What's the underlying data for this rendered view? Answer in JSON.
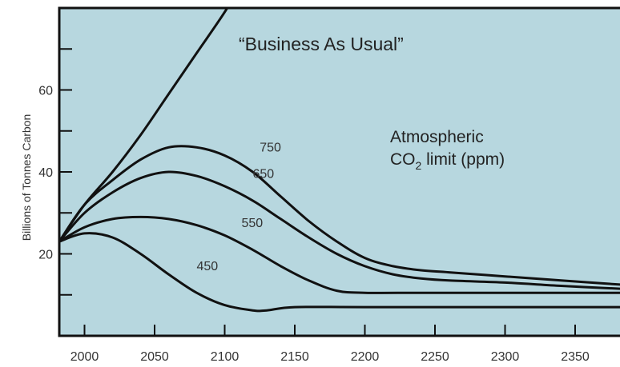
{
  "chart_data": {
    "type": "line",
    "ylabel": "Billions of Tonnes Carbon",
    "xlim": [
      1982,
      2382
    ],
    "ylim": [
      0,
      80
    ],
    "x_ticks": [
      2000,
      2050,
      2100,
      2150,
      2200,
      2250,
      2300,
      2350
    ],
    "y_ticks": [
      20,
      40,
      60
    ],
    "y_minor_ticks": [
      10,
      30,
      50,
      70
    ],
    "grid": false,
    "background_color": "#b7d7df",
    "line_color": "#111111",
    "annotations": {
      "business_as_usual": "“Business As Usual”",
      "limit_line1": "Atmospheric",
      "limit_line2_prefix": "CO",
      "limit_line2_subscript": "2",
      "limit_line2_suffix": " limit (ppm)"
    },
    "series": [
      {
        "name": "Business As Usual",
        "label": "",
        "x": [
          1982,
          2000,
          2020,
          2040,
          2060,
          2080,
          2100,
          2110
        ],
        "y": [
          23,
          32,
          40,
          49,
          59,
          69,
          79,
          85
        ]
      },
      {
        "name": "750",
        "label": "750",
        "label_pos": [
          2125,
          45
        ],
        "x": [
          1982,
          2000,
          2020,
          2040,
          2060,
          2080,
          2100,
          2120,
          2140,
          2160,
          2180,
          2200,
          2220,
          2240,
          2260,
          2300,
          2340,
          2382
        ],
        "y": [
          23,
          32,
          38,
          43,
          46,
          46,
          44,
          40,
          34,
          28,
          23,
          19,
          17,
          16,
          15.5,
          14.5,
          13.5,
          12.5
        ]
      },
      {
        "name": "650",
        "label": "650",
        "label_pos": [
          2120,
          38.5
        ],
        "x": [
          1982,
          2000,
          2020,
          2040,
          2060,
          2080,
          2100,
          2120,
          2140,
          2160,
          2180,
          2200,
          2220,
          2240,
          2260,
          2300,
          2340,
          2382
        ],
        "y": [
          23,
          30,
          35,
          38.5,
          40,
          39,
          36.5,
          33,
          28.5,
          24,
          20,
          17,
          15,
          14,
          13.5,
          13,
          12.2,
          11.5
        ]
      },
      {
        "name": "550",
        "label": "550",
        "label_pos": [
          2112,
          26.5
        ],
        "x": [
          1982,
          2000,
          2020,
          2040,
          2060,
          2080,
          2100,
          2120,
          2140,
          2160,
          2180,
          2200,
          2240,
          2300,
          2382
        ],
        "y": [
          23,
          26.5,
          28.5,
          29,
          28.5,
          27,
          24.5,
          21,
          17,
          13.5,
          11,
          10.5,
          10.5,
          10.5,
          10.5
        ]
      },
      {
        "name": "450",
        "label": "450",
        "label_pos": [
          2080,
          16
        ],
        "x": [
          1982,
          2000,
          2020,
          2040,
          2060,
          2080,
          2100,
          2120,
          2130,
          2150,
          2200,
          2300,
          2382
        ],
        "y": [
          23,
          25,
          24,
          20,
          15,
          10.5,
          7.5,
          6.2,
          6.2,
          7,
          7,
          7,
          7
        ]
      }
    ]
  }
}
